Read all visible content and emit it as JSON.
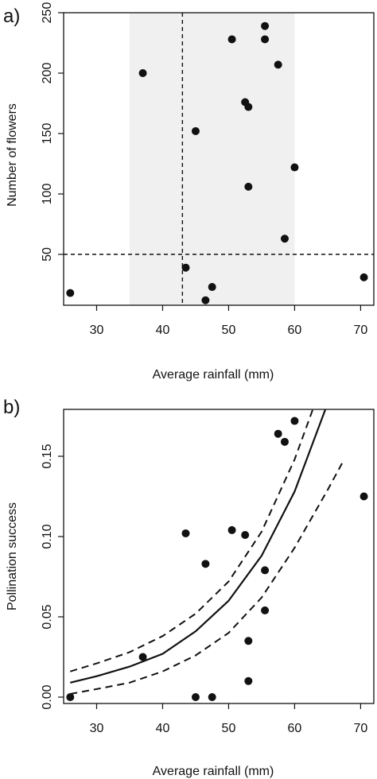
{
  "chart_data": [
    {
      "panel_label": "a)",
      "type": "scatter",
      "xlabel": "Average rainfall (mm)",
      "ylabel": "Number of flowers",
      "xlim": [
        25,
        72
      ],
      "ylim": [
        10,
        250
      ],
      "xticks": [
        "30",
        "40",
        "50",
        "60",
        "70"
      ],
      "yticks": [
        "50",
        "100",
        "150",
        "200",
        "250"
      ],
      "shaded_band_x": [
        35,
        60
      ],
      "vline_x": 43,
      "hline_y": 50,
      "points": [
        {
          "x": 26,
          "y": 18
        },
        {
          "x": 37,
          "y": 200
        },
        {
          "x": 43.5,
          "y": 39
        },
        {
          "x": 45,
          "y": 152
        },
        {
          "x": 46.5,
          "y": 12
        },
        {
          "x": 47.5,
          "y": 23
        },
        {
          "x": 50.5,
          "y": 228
        },
        {
          "x": 52.5,
          "y": 176
        },
        {
          "x": 53,
          "y": 172
        },
        {
          "x": 53,
          "y": 106
        },
        {
          "x": 55.5,
          "y": 239
        },
        {
          "x": 55.5,
          "y": 228
        },
        {
          "x": 57.5,
          "y": 207
        },
        {
          "x": 58.5,
          "y": 63
        },
        {
          "x": 60,
          "y": 122
        },
        {
          "x": 70.5,
          "y": 31
        }
      ]
    },
    {
      "panel_label": "b)",
      "type": "scatter",
      "xlabel": "Average rainfall (mm)",
      "ylabel": "Pollination success",
      "xlim": [
        25,
        72
      ],
      "ylim": [
        0,
        0.18
      ],
      "xticks": [
        "30",
        "40",
        "50",
        "60",
        "70"
      ],
      "yticks": [
        "0.00",
        "0.05",
        "0.10",
        "0.15"
      ],
      "points": [
        {
          "x": 26,
          "y": 0.0
        },
        {
          "x": 37,
          "y": 0.025
        },
        {
          "x": 43.5,
          "y": 0.102
        },
        {
          "x": 45,
          "y": 0.0
        },
        {
          "x": 46.5,
          "y": 0.083
        },
        {
          "x": 47.5,
          "y": 0.0
        },
        {
          "x": 50.5,
          "y": 0.104
        },
        {
          "x": 52.5,
          "y": 0.101
        },
        {
          "x": 53,
          "y": 0.035
        },
        {
          "x": 53,
          "y": 0.01
        },
        {
          "x": 55.5,
          "y": 0.079
        },
        {
          "x": 55.5,
          "y": 0.054
        },
        {
          "x": 57.5,
          "y": 0.164
        },
        {
          "x": 58.5,
          "y": 0.159
        },
        {
          "x": 60,
          "y": 0.172
        },
        {
          "x": 70.5,
          "y": 0.125
        }
      ],
      "fit": {
        "x": [
          26,
          30,
          35,
          40,
          45,
          50,
          55,
          60,
          65
        ],
        "y": [
          0.009,
          0.013,
          0.019,
          0.027,
          0.041,
          0.06,
          0.088,
          0.128,
          0.183
        ]
      },
      "ci_upper": {
        "x": [
          26,
          30,
          35,
          40,
          45,
          50,
          55,
          60,
          63
        ],
        "y": [
          0.016,
          0.021,
          0.028,
          0.038,
          0.052,
          0.072,
          0.103,
          0.148,
          0.182
        ]
      },
      "ci_lower": {
        "x": [
          26,
          30,
          35,
          40,
          45,
          50,
          55,
          60,
          65,
          67.5
        ],
        "y": [
          0.002,
          0.005,
          0.009,
          0.016,
          0.026,
          0.04,
          0.062,
          0.093,
          0.129,
          0.148
        ]
      }
    }
  ]
}
